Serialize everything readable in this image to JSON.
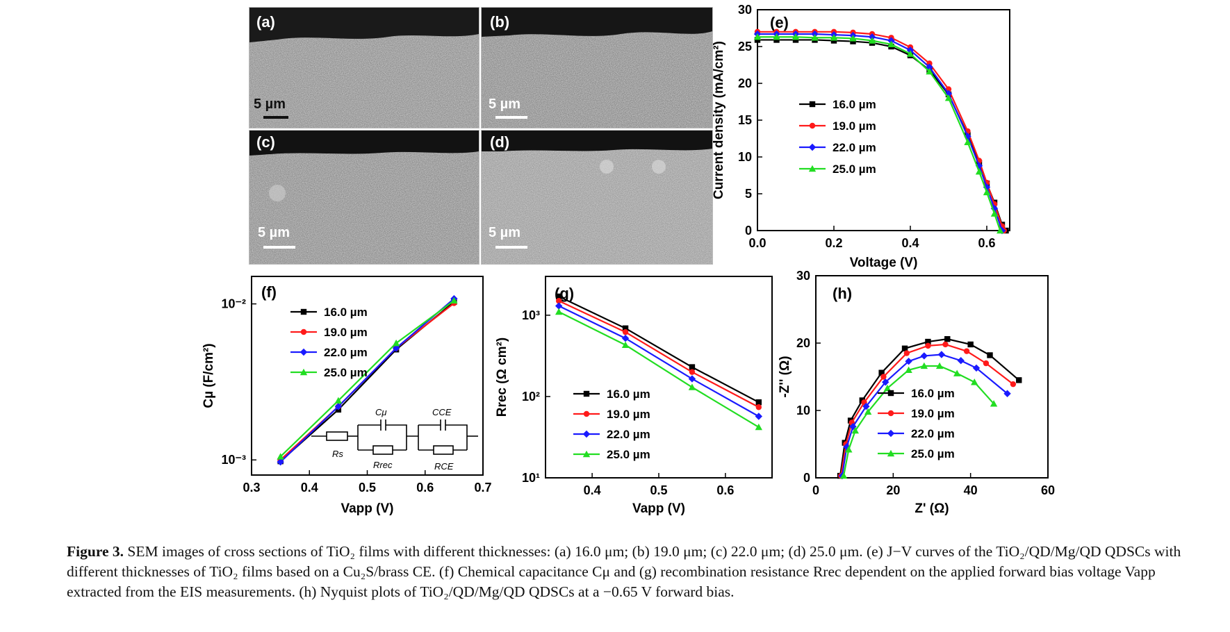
{
  "panels": {
    "sem": [
      {
        "label": "(a)",
        "scale": "5 µm"
      },
      {
        "label": "(b)",
        "scale": "5 µm"
      },
      {
        "label": "(c)",
        "scale": "5 µm"
      },
      {
        "label": "(d)",
        "scale": "5 µm"
      }
    ],
    "e_label": "(e)",
    "f_label": "(f)",
    "g_label": "(g)",
    "h_label": "(h)"
  },
  "legend_entries": [
    "16.0 µm",
    "19.0 µm",
    "22.0 µm",
    "25.0 µm"
  ],
  "colors": {
    "s16": "#000000",
    "s19": "#ff1a1a",
    "s22": "#1a1aff",
    "s25": "#22dd22"
  },
  "circuit": {
    "rs": "Rs",
    "cmu": "Cμ",
    "rrec": "Rrec",
    "cce": "CCE",
    "rce": "RCE"
  },
  "chart_data": [
    {
      "id": "e",
      "type": "line",
      "xlabel": "Voltage (V)",
      "ylabel": "Current density (mA/cm²)",
      "xlim": [
        0,
        0.66
      ],
      "ylim": [
        0,
        30
      ],
      "xticks": [
        "0.0",
        "0.2",
        "0.4",
        "0.6"
      ],
      "xtick_values": [
        0,
        0.2,
        0.4,
        0.6
      ],
      "yticks": [
        "0",
        "5",
        "10",
        "15",
        "20",
        "25",
        "30"
      ],
      "ytick_values": [
        0,
        5,
        10,
        15,
        20,
        25,
        30
      ],
      "series": [
        {
          "name": "16.0 µm",
          "color": "#000000",
          "x": [
            0,
            0.05,
            0.1,
            0.15,
            0.2,
            0.25,
            0.3,
            0.35,
            0.4,
            0.45,
            0.5,
            0.55,
            0.58,
            0.6,
            0.62,
            0.64,
            0.65
          ],
          "y": [
            25.9,
            25.9,
            25.9,
            25.9,
            25.8,
            25.7,
            25.5,
            25.0,
            23.8,
            21.8,
            18.5,
            13.0,
            9.2,
            6.4,
            3.8,
            0.8,
            0
          ]
        },
        {
          "name": "19.0 µm",
          "color": "#ff1a1a",
          "x": [
            0,
            0.05,
            0.1,
            0.15,
            0.2,
            0.25,
            0.3,
            0.35,
            0.4,
            0.45,
            0.5,
            0.55,
            0.58,
            0.6,
            0.62,
            0.64,
            0.645
          ],
          "y": [
            27.0,
            27.0,
            27.0,
            27.0,
            27.0,
            26.9,
            26.7,
            26.2,
            24.9,
            22.7,
            19.2,
            13.5,
            9.5,
            6.5,
            3.6,
            0.6,
            0
          ]
        },
        {
          "name": "22.0 µm",
          "color": "#1a1aff",
          "x": [
            0,
            0.05,
            0.1,
            0.15,
            0.2,
            0.25,
            0.3,
            0.35,
            0.4,
            0.45,
            0.5,
            0.55,
            0.58,
            0.6,
            0.62,
            0.64
          ],
          "y": [
            26.7,
            26.7,
            26.7,
            26.7,
            26.6,
            26.5,
            26.3,
            25.8,
            24.5,
            22.2,
            18.6,
            12.8,
            8.8,
            5.9,
            3.0,
            0
          ]
        },
        {
          "name": "25.0 µm",
          "color": "#22dd22",
          "x": [
            0,
            0.05,
            0.1,
            0.15,
            0.2,
            0.25,
            0.3,
            0.35,
            0.4,
            0.45,
            0.5,
            0.55,
            0.58,
            0.6,
            0.62,
            0.635
          ],
          "y": [
            26.3,
            26.3,
            26.3,
            26.2,
            26.2,
            26.1,
            25.8,
            25.3,
            24.0,
            21.6,
            18.0,
            12.0,
            8.0,
            5.2,
            2.3,
            0
          ]
        }
      ]
    },
    {
      "id": "f",
      "type": "line",
      "xlabel": "Vapp (V)",
      "ylabel": "Cµ (F/cm²)",
      "xlim": [
        0.3,
        0.7
      ],
      "ylim": [
        0.0008,
        0.015
      ],
      "yscale": "log",
      "xticks": [
        "0.3",
        "0.4",
        "0.5",
        "0.6",
        "0.7"
      ],
      "xtick_values": [
        0.3,
        0.4,
        0.5,
        0.6,
        0.7
      ],
      "yticks": [
        "10⁻³",
        "10⁻²"
      ],
      "ytick_values": [
        0.001,
        0.01
      ],
      "series": [
        {
          "name": "16.0 µm",
          "color": "#000000",
          "x": [
            0.35,
            0.45,
            0.55,
            0.65
          ],
          "y": [
            0.00098,
            0.0021,
            0.0051,
            0.0103
          ]
        },
        {
          "name": "19.0 µm",
          "color": "#ff1a1a",
          "x": [
            0.35,
            0.45,
            0.55,
            0.65
          ],
          "y": [
            0.001,
            0.0022,
            0.0052,
            0.0101
          ]
        },
        {
          "name": "22.0 µm",
          "color": "#1a1aff",
          "x": [
            0.35,
            0.45,
            0.55,
            0.65
          ],
          "y": [
            0.00097,
            0.0022,
            0.0052,
            0.0108
          ]
        },
        {
          "name": "25.0 µm",
          "color": "#22dd22",
          "x": [
            0.35,
            0.45,
            0.55,
            0.65
          ],
          "y": [
            0.00105,
            0.0024,
            0.0056,
            0.0105
          ]
        }
      ]
    },
    {
      "id": "g",
      "type": "line",
      "xlabel": "Vapp (V)",
      "ylabel": "Rrec (Ω cm²)",
      "xlim": [
        0.33,
        0.67
      ],
      "ylim": [
        10,
        3000
      ],
      "yscale": "log",
      "xticks": [
        "0.4",
        "0.5",
        "0.6"
      ],
      "xtick_values": [
        0.4,
        0.5,
        0.6
      ],
      "yticks": [
        "10¹",
        "10²",
        "10³"
      ],
      "ytick_values": [
        10,
        100,
        1000
      ],
      "series": [
        {
          "name": "16.0 µm",
          "color": "#000000",
          "x": [
            0.35,
            0.45,
            0.55,
            0.65
          ],
          "y": [
            1700,
            690,
            230,
            85
          ]
        },
        {
          "name": "19.0 µm",
          "color": "#ff1a1a",
          "x": [
            0.35,
            0.45,
            0.55,
            0.65
          ],
          "y": [
            1500,
            620,
            200,
            74
          ]
        },
        {
          "name": "22.0 µm",
          "color": "#1a1aff",
          "x": [
            0.35,
            0.45,
            0.55,
            0.65
          ],
          "y": [
            1300,
            520,
            165,
            57
          ]
        },
        {
          "name": "25.0 µm",
          "color": "#22dd22",
          "x": [
            0.35,
            0.45,
            0.55,
            0.65
          ],
          "y": [
            1100,
            430,
            130,
            42
          ]
        }
      ]
    },
    {
      "id": "h",
      "type": "line",
      "xlabel": "Z' (Ω)",
      "ylabel": "-Z'' (Ω)",
      "xlim": [
        0,
        60
      ],
      "ylim": [
        0,
        30
      ],
      "xticks": [
        "0",
        "20",
        "40",
        "60"
      ],
      "xtick_values": [
        0,
        20,
        40,
        60
      ],
      "yticks": [
        "0",
        "10",
        "20",
        "30"
      ],
      "ytick_values": [
        0,
        10,
        20,
        30
      ],
      "series": [
        {
          "name": "16.0 µm",
          "color": "#000000",
          "x": [
            6.3,
            7.5,
            9.0,
            12,
            17,
            23,
            29,
            34,
            40,
            45,
            52.5
          ],
          "y": [
            0.3,
            5.2,
            8.5,
            11.5,
            15.6,
            19.2,
            20.2,
            20.6,
            19.8,
            18.2,
            14.5
          ]
        },
        {
          "name": "19.0 µm",
          "color": "#ff1a1a",
          "x": [
            6.5,
            7.8,
            9.3,
            12.5,
            17.5,
            23.5,
            29,
            33.5,
            39,
            44,
            51
          ],
          "y": [
            0.3,
            5,
            8.2,
            11.2,
            15.0,
            18.5,
            19.6,
            19.8,
            18.8,
            17,
            13.9
          ]
        },
        {
          "name": "22.0 µm",
          "color": "#1a1aff",
          "x": [
            6.8,
            8,
            9.6,
            13,
            18,
            24,
            28,
            32.5,
            37.5,
            41.5,
            49.5
          ],
          "y": [
            0.3,
            4.6,
            7.6,
            10.6,
            14.2,
            17.3,
            18.1,
            18.3,
            17.4,
            16.3,
            12.5
          ]
        },
        {
          "name": "25.0 µm",
          "color": "#22dd22",
          "x": [
            7.2,
            8.5,
            10.2,
            13.5,
            18.5,
            24,
            28,
            32,
            36.5,
            41,
            46
          ],
          "y": [
            0.3,
            4.2,
            7.0,
            9.8,
            13.3,
            16.0,
            16.6,
            16.6,
            15.5,
            14.2,
            11
          ]
        }
      ]
    }
  ],
  "caption": {
    "label": "Figure 3.",
    "text": "SEM images of cross sections of TiO₂ films with different thicknesses: (a) 16.0 μm; (b) 19.0 μm; (c) 22.0 μm; (d) 25.0 μm. (e) J−V curves of the TiO₂/QD/Mg/QD QDSCs with different thicknesses of TiO₂ films based on a Cu₂S/brass CE. (f) Chemical capacitance Cμ and (g) recombination resistance Rrec dependent on the applied forward bias voltage Vapp extracted from the EIS measurements. (h) Nyquist plots of TiO₂/QD/Mg/QD QDSCs at a −0.65 V forward bias."
  }
}
